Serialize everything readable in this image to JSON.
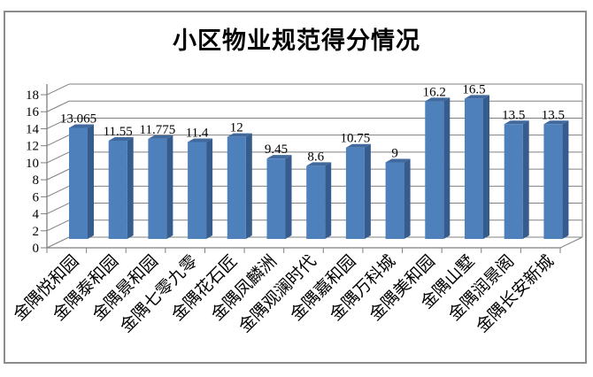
{
  "chart_data": {
    "type": "bar",
    "style": "3d-clustered-column",
    "title": "小区物业规范得分情况",
    "categories": [
      "金隅悦和园",
      "金隅泰和园",
      "金隅景和园",
      "金隅七零九零",
      "金隅花石匠",
      "金隅凤麟洲",
      "金隅观澜时代",
      "金隅嘉和园",
      "金隅万科城",
      "金隅美和园",
      "金隅山墅",
      "金隅润景阁",
      "金隅长安新城"
    ],
    "values": [
      13.065,
      11.55,
      11.775,
      11.4,
      12,
      9.45,
      8.6,
      10.75,
      9,
      16.2,
      16.5,
      13.5,
      13.5
    ],
    "data_labels": [
      "13.065",
      "11.55",
      "11.775",
      "11.4",
      "12",
      "9.45",
      "8.6",
      "10.75",
      "9",
      "16.2",
      "16.5",
      "13.5",
      "13.5"
    ],
    "xlabel": "",
    "ylabel": "",
    "ylim": [
      0,
      18
    ],
    "ytick_step": 2,
    "ytick_labels": [
      "0",
      "2",
      "4",
      "6",
      "8",
      "10",
      "12",
      "14",
      "16",
      "18"
    ],
    "grid": true,
    "legend": "none",
    "x_label_rotation_deg": -45,
    "colors": {
      "bar_front": "#4e80bc",
      "bar_side": "#365c8d",
      "bar_top": "#41699e",
      "gridline": "#808080",
      "axis": "#7f7f7f",
      "outer_border": "#8c8c8c",
      "text": "#000000",
      "background": "#ffffff"
    }
  }
}
